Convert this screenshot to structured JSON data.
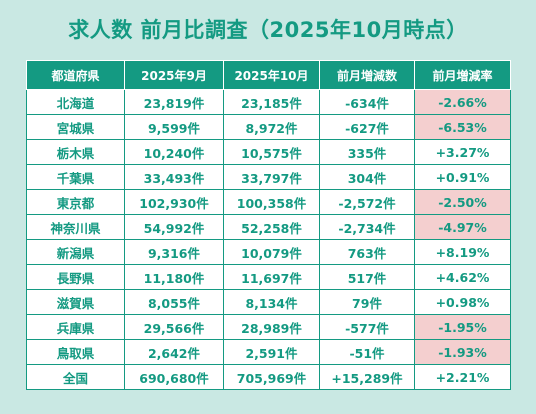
{
  "title": "求人数 前月比調査（2025年10月時点）",
  "table": {
    "headers": [
      "都道府県",
      "2025年9月",
      "2025年10月",
      "前月増減数",
      "前月増減率"
    ],
    "rows": [
      {
        "pref": "北海道",
        "sep": "23,819件",
        "oct": "23,185件",
        "diff": "-634件",
        "rate": "-2.66%",
        "negative": true
      },
      {
        "pref": "宮城県",
        "sep": "9,599件",
        "oct": "8,972件",
        "diff": "-627件",
        "rate": "-6.53%",
        "negative": true
      },
      {
        "pref": "栃木県",
        "sep": "10,240件",
        "oct": "10,575件",
        "diff": "335件",
        "rate": "+3.27%",
        "negative": false
      },
      {
        "pref": "千葉県",
        "sep": "33,493件",
        "oct": "33,797件",
        "diff": "304件",
        "rate": "+0.91%",
        "negative": false
      },
      {
        "pref": "東京都",
        "sep": "102,930件",
        "oct": "100,358件",
        "diff": "-2,572件",
        "rate": "-2.50%",
        "negative": true
      },
      {
        "pref": "神奈川県",
        "sep": "54,992件",
        "oct": "52,258件",
        "diff": "-2,734件",
        "rate": "-4.97%",
        "negative": true
      },
      {
        "pref": "新潟県",
        "sep": "9,316件",
        "oct": "10,079件",
        "diff": "763件",
        "rate": "+8.19%",
        "negative": false
      },
      {
        "pref": "長野県",
        "sep": "11,180件",
        "oct": "11,697件",
        "diff": "517件",
        "rate": "+4.62%",
        "negative": false
      },
      {
        "pref": "滋賀県",
        "sep": "8,055件",
        "oct": "8,134件",
        "diff": "79件",
        "rate": "+0.98%",
        "negative": false
      },
      {
        "pref": "兵庫県",
        "sep": "29,566件",
        "oct": "28,989件",
        "diff": "-577件",
        "rate": "-1.95%",
        "negative": true
      },
      {
        "pref": "鳥取県",
        "sep": "2,642件",
        "oct": "2,591件",
        "diff": "-51件",
        "rate": "-1.93%",
        "negative": true
      },
      {
        "pref": "全国",
        "sep": "690,680件",
        "oct": "705,969件",
        "diff": "+15,289件",
        "rate": "+2.21%",
        "negative": false
      }
    ]
  },
  "colors": {
    "accent": "#149a82",
    "background": "#c9e8e3",
    "negative_highlight": "#f4cfcf"
  }
}
